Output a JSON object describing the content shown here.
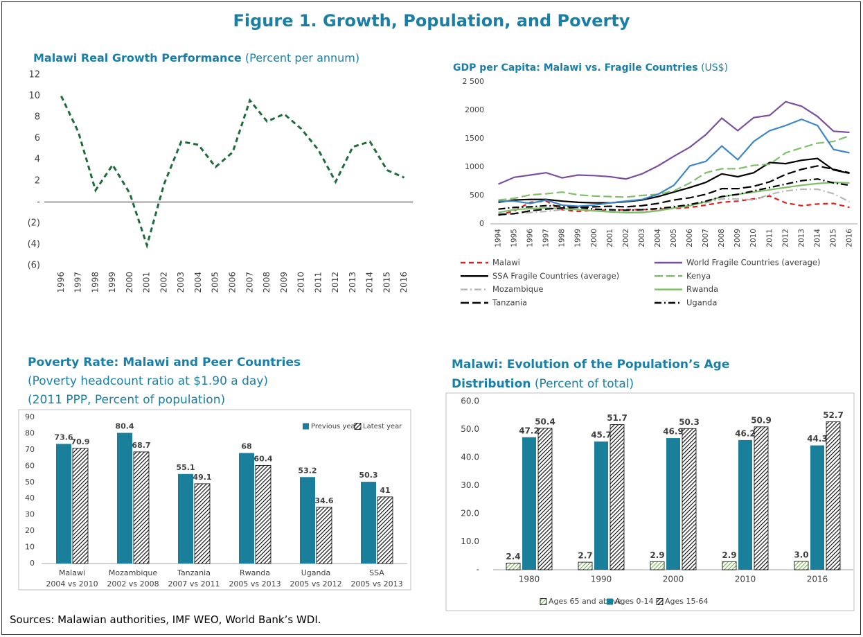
{
  "title": "Figure 1. Growth, Population, and Poverty",
  "source": "Sources: Malawian authorities, IMF WEO, World Bank’s WDI.",
  "chart_data": [
    {
      "type": "line",
      "title": "Malawi Real Growth Performance",
      "subtitle": "(Percent per annum)",
      "categories": [
        "1996",
        "1997",
        "1998",
        "1999",
        "2000",
        "2001",
        "2002",
        "2003",
        "2004",
        "2005",
        "2006",
        "2007",
        "2008",
        "2009",
        "2010",
        "2011",
        "2012",
        "2013",
        "2014",
        "2015",
        "2016"
      ],
      "values": [
        10.0,
        6.6,
        1.1,
        3.5,
        0.8,
        -4.1,
        1.7,
        5.7,
        5.4,
        3.3,
        4.7,
        9.6,
        7.6,
        8.3,
        6.9,
        4.9,
        1.9,
        5.2,
        5.7,
        3.0,
        2.3
      ],
      "color": "#1e6b3c",
      "style": "dashed",
      "ylim": [
        -6,
        12
      ],
      "yticks": [
        {
          "value": -6,
          "label": "(6)"
        },
        {
          "value": -4,
          "label": "(4)"
        },
        {
          "value": -2,
          "label": "(2)"
        },
        {
          "value": 0,
          "label": "-"
        },
        2,
        4,
        6,
        8,
        10,
        12
      ]
    },
    {
      "type": "line",
      "title": "GDP per Capita: Malawi vs. Fragile Countries",
      "subtitle": "(US$)",
      "categories": [
        "1994",
        "1995",
        "1996",
        "1997",
        "1998",
        "1999",
        "2000",
        "2001",
        "2002",
        "2003",
        "2004",
        "2005",
        "2006",
        "2007",
        "2008",
        "2009",
        "2010",
        "2011",
        "2012",
        "2013",
        "2014",
        "2015",
        "2016"
      ],
      "series": [
        {
          "name": "Malawi",
          "color": "#e02020",
          "style": "dashed",
          "values": [
            150,
            230,
            380,
            400,
            250,
            220,
            240,
            240,
            250,
            250,
            260,
            270,
            290,
            330,
            380,
            400,
            440,
            490,
            370,
            320,
            350,
            360,
            290
          ]
        },
        {
          "name": "World Fragile Countries (average)",
          "color": "#7b4f9d",
          "style": "solid",
          "values": [
            700,
            820,
            860,
            900,
            810,
            860,
            850,
            830,
            790,
            880,
            1020,
            1190,
            1350,
            1570,
            1860,
            1640,
            1870,
            1910,
            2150,
            2070,
            1890,
            1630,
            1610
          ]
        },
        {
          "name": "SSA Fragile Countries (average)",
          "color": "#000000",
          "style": "solid",
          "values": [
            380,
            420,
            430,
            430,
            400,
            380,
            370,
            370,
            390,
            420,
            480,
            560,
            640,
            730,
            880,
            830,
            900,
            1080,
            1060,
            1120,
            1150,
            950,
            890
          ]
        },
        {
          "name": "Kenya",
          "color": "#7fbf6a",
          "style": "longdash",
          "values": [
            420,
            450,
            510,
            530,
            560,
            510,
            490,
            480,
            470,
            500,
            520,
            580,
            720,
            900,
            970,
            970,
            1030,
            1050,
            1250,
            1340,
            1420,
            1450,
            1550
          ]
        },
        {
          "name": "Mozambique",
          "color": "#b8b8b8",
          "style": "dashdot",
          "values": [
            180,
            180,
            200,
            220,
            250,
            270,
            240,
            230,
            200,
            210,
            240,
            310,
            330,
            370,
            440,
            440,
            420,
            520,
            580,
            610,
            610,
            530,
            390
          ]
        },
        {
          "name": "Rwanda",
          "color": "#7fbf6a",
          "style": "solid",
          "values": [
            200,
            250,
            270,
            280,
            270,
            250,
            230,
            210,
            200,
            200,
            230,
            280,
            320,
            390,
            480,
            520,
            560,
            600,
            640,
            680,
            710,
            730,
            720
          ]
        },
        {
          "name": "Tanzania",
          "color": "#000000",
          "style": "longdash",
          "values": [
            160,
            180,
            230,
            260,
            280,
            290,
            300,
            310,
            300,
            320,
            360,
            420,
            460,
            520,
            620,
            620,
            660,
            740,
            870,
            960,
            1020,
            960,
            900
          ]
        },
        {
          "name": "Uganda",
          "color": "#000000",
          "style": "dashdot",
          "values": [
            260,
            290,
            300,
            320,
            310,
            290,
            260,
            250,
            240,
            250,
            270,
            300,
            340,
            400,
            480,
            520,
            580,
            640,
            700,
            760,
            790,
            720,
            680
          ]
        },
        {
          "color": "#3d86c6",
          "style": "solid",
          "values": [
            400,
            400,
            360,
            420,
            330,
            310,
            330,
            370,
            400,
            430,
            520,
            680,
            1020,
            1100,
            1370,
            1130,
            1450,
            1640,
            1730,
            1840,
            1730,
            1310,
            1250
          ]
        }
      ],
      "ylim": [
        0,
        2500
      ],
      "yticks": [
        0,
        500,
        1000,
        1500,
        2000,
        {
          "value": 2500,
          "label": "2 500"
        }
      ],
      "legend": "bottom"
    },
    {
      "type": "bar",
      "title": "Poverty Rate: Malawi and Peer Countries",
      "subtitles": [
        "(Poverty headcount ratio at $1.90 a day)",
        "(2011 PPP, Percent of population)"
      ],
      "categories": [
        "Malawi",
        "Mozambique",
        "Tanzania",
        "Rwanda",
        "Uganda",
        "SSA"
      ],
      "category_periods": [
        "2004 vs 2010",
        "2002 vs 2008",
        "2007 vs 2011",
        "2005 vs 2013",
        "2005 vs 2012",
        "2005 vs 2013"
      ],
      "series": [
        {
          "name": "Previous year",
          "color": "#1a7f9a",
          "values": [
            73.6,
            80.4,
            55.1,
            68,
            53.2,
            50.3
          ]
        },
        {
          "name": "Latest year",
          "color": "#000000",
          "hatch": true,
          "values": [
            70.9,
            68.7,
            49.1,
            60.4,
            34.6,
            41
          ]
        }
      ],
      "ylim": [
        0,
        90
      ],
      "yticks": [
        0,
        10,
        20,
        30,
        40,
        50,
        60,
        70,
        80,
        90
      ],
      "legend": "top-right"
    },
    {
      "type": "bar",
      "title": "Malawi: Evolution of the Population’s Age Distribution",
      "subtitle": "(Percent of total)",
      "categories": [
        "1980",
        "1990",
        "2000",
        "2010",
        "2016"
      ],
      "series": [
        {
          "name": "Ages 65 and above",
          "color": "#70ad47",
          "hatch": true,
          "values": [
            2.4,
            2.7,
            2.9,
            2.9,
            3.0
          ],
          "value_labels": [
            "2.4",
            "2.7",
            "2.9",
            "2.9",
            "3.0"
          ]
        },
        {
          "name": "Ages 0-14",
          "color": "#1a7f9a",
          "values": [
            47.2,
            45.7,
            46.9,
            46.2,
            44.3
          ],
          "value_labels": [
            "47.2",
            "45.7",
            "46.9",
            "46.2",
            "44.3"
          ]
        },
        {
          "name": "Ages 15-64",
          "color": "#000000",
          "hatch": true,
          "values": [
            50.4,
            51.7,
            50.3,
            50.9,
            52.7
          ],
          "value_labels": [
            "50.4",
            "51.7",
            "50.3",
            "50.9",
            "52.7"
          ]
        }
      ],
      "ylim": [
        0,
        60
      ],
      "yticks": [
        {
          "value": 0,
          "label": "-"
        },
        {
          "value": 10,
          "label": "10.0"
        },
        {
          "value": 20,
          "label": "20.0"
        },
        {
          "value": 30,
          "label": "30.0"
        },
        {
          "value": 40,
          "label": "40.0"
        },
        {
          "value": 50,
          "label": "50.0"
        },
        {
          "value": 60,
          "label": "60.0"
        }
      ],
      "legend": "bottom"
    }
  ]
}
